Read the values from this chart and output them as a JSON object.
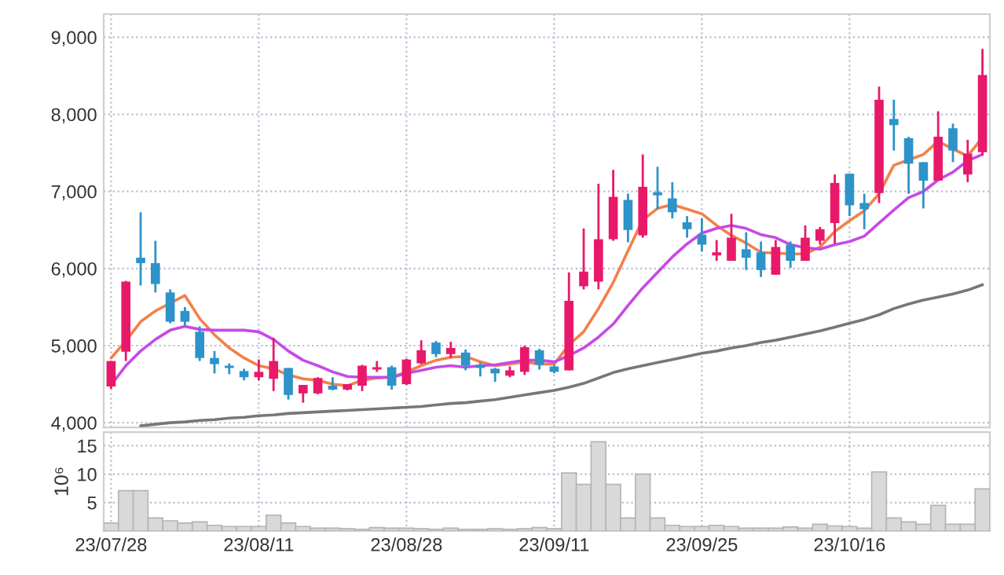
{
  "chart_data": [
    {
      "type": "candlestick",
      "categories": [
        null,
        null,
        null,
        null,
        null,
        null,
        null,
        null,
        null,
        null,
        null,
        null,
        null,
        null,
        null,
        null,
        null,
        null,
        null,
        null,
        null,
        null,
        null,
        null,
        null,
        null,
        null,
        null,
        null,
        null,
        null,
        null,
        null,
        null,
        null,
        null,
        null,
        null,
        null,
        null,
        null,
        null,
        null,
        null,
        null,
        null,
        null,
        null,
        null,
        null,
        null,
        null,
        null,
        null,
        null,
        null,
        null,
        null,
        null,
        null
      ],
      "ohlc": [
        [
          4470,
          4800,
          4440,
          4800
        ],
        [
          4920,
          5840,
          4800,
          5830
        ],
        [
          6140,
          6730,
          5780,
          6070
        ],
        [
          6070,
          6360,
          5690,
          5800
        ],
        [
          5690,
          5730,
          5290,
          5310
        ],
        [
          5450,
          5500,
          5260,
          5310
        ],
        [
          5180,
          5250,
          4800,
          4840
        ],
        [
          4840,
          4930,
          4640,
          4760
        ],
        [
          4740,
          4770,
          4630,
          4710
        ],
        [
          4670,
          4700,
          4550,
          4590
        ],
        [
          4590,
          4820,
          4550,
          4660
        ],
        [
          4570,
          5100,
          4410,
          4800
        ],
        [
          4710,
          4710,
          4300,
          4360
        ],
        [
          4380,
          4490,
          4260,
          4490
        ],
        [
          4380,
          4590,
          4370,
          4580
        ],
        [
          4480,
          4590,
          4420,
          4430
        ],
        [
          4430,
          4500,
          4420,
          4500
        ],
        [
          4480,
          4750,
          4410,
          4740
        ],
        [
          4690,
          4800,
          4660,
          4720
        ],
        [
          4720,
          4740,
          4430,
          4480
        ],
        [
          4500,
          4830,
          4490,
          4820
        ],
        [
          4770,
          5070,
          4760,
          4940
        ],
        [
          5040,
          5060,
          4850,
          4890
        ],
        [
          4890,
          5050,
          4840,
          4970
        ],
        [
          4910,
          4950,
          4680,
          4740
        ],
        [
          4750,
          4780,
          4600,
          4710
        ],
        [
          4700,
          4710,
          4530,
          4640
        ],
        [
          4610,
          4730,
          4590,
          4680
        ],
        [
          4660,
          5000,
          4620,
          4980
        ],
        [
          4940,
          4960,
          4690,
          4750
        ],
        [
          4730,
          4750,
          4640,
          4660
        ],
        [
          4680,
          5950,
          4680,
          5580
        ],
        [
          5770,
          6520,
          5730,
          5960
        ],
        [
          5830,
          7100,
          5730,
          6380
        ],
        [
          6380,
          7280,
          6360,
          6930
        ],
        [
          6890,
          6970,
          6340,
          6500
        ],
        [
          6430,
          7480,
          6400,
          7060
        ],
        [
          6990,
          7320,
          6770,
          6950
        ],
        [
          6910,
          7120,
          6650,
          6730
        ],
        [
          6600,
          6680,
          6400,
          6510
        ],
        [
          6440,
          6650,
          6220,
          6310
        ],
        [
          6170,
          6370,
          6100,
          6210
        ],
        [
          6100,
          6710,
          6100,
          6400
        ],
        [
          6250,
          6470,
          5980,
          6140
        ],
        [
          6210,
          6350,
          5890,
          5980
        ],
        [
          5920,
          6370,
          5920,
          6280
        ],
        [
          6310,
          6350,
          6010,
          6100
        ],
        [
          6100,
          6560,
          6100,
          6400
        ],
        [
          6360,
          6540,
          6310,
          6510
        ],
        [
          6590,
          7220,
          6320,
          7110
        ],
        [
          7230,
          7230,
          6680,
          6820
        ],
        [
          6850,
          6970,
          6510,
          6770
        ],
        [
          6980,
          8360,
          6850,
          8190
        ],
        [
          7940,
          8190,
          7530,
          7860
        ],
        [
          7690,
          7710,
          6970,
          7360
        ],
        [
          7380,
          7380,
          6780,
          7140
        ],
        [
          7140,
          8040,
          7140,
          7710
        ],
        [
          7820,
          7880,
          7380,
          7530
        ],
        [
          7220,
          7670,
          7120,
          7490
        ],
        [
          7510,
          8850,
          7470,
          8510
        ]
      ],
      "colors": [
        "#e8196a",
        "#e8196a",
        "#2d93c8",
        "#2d93c8",
        "#2d93c8",
        "#2d93c8",
        "#2d93c8",
        "#2d93c8",
        "#2d93c8",
        "#2d93c8",
        "#e8196a",
        "#e8196a",
        "#2d93c8",
        "#e8196a",
        "#e8196a",
        "#2d93c8",
        "#e8196a",
        "#e8196a",
        "#e8196a",
        "#2d93c8",
        "#e8196a",
        "#e8196a",
        "#2d93c8",
        "#e8196a",
        "#2d93c8",
        "#2d93c8",
        "#2d93c8",
        "#e8196a",
        "#e8196a",
        "#2d93c8",
        "#2d93c8",
        "#e8196a",
        "#e8196a",
        "#e8196a",
        "#e8196a",
        "#2d93c8",
        "#e8196a",
        "#2d93c8",
        "#2d93c8",
        "#2d93c8",
        "#2d93c8",
        "#e8196a",
        "#e8196a",
        "#2d93c8",
        "#2d93c8",
        "#e8196a",
        "#2d93c8",
        "#e8196a",
        "#e8196a",
        "#e8196a",
        "#2d93c8",
        "#2d93c8",
        "#e8196a",
        "#2d93c8",
        "#2d93c8",
        "#2d93c8",
        "#e8196a",
        "#2d93c8",
        "#e8196a",
        "#e8196a"
      ],
      "series": [
        {
          "type": "line",
          "color": "#f4804a",
          "values": [
            4840,
            5060,
            5310,
            5450,
            5550,
            5650,
            5350,
            5140,
            4970,
            4840,
            4740,
            4700,
            4620,
            4570,
            4550,
            4500,
            4480,
            4550,
            4580,
            4590,
            4660,
            4740,
            4810,
            4850,
            4860,
            4790,
            4740,
            4760,
            4790,
            4760,
            4760,
            5010,
            5180,
            5480,
            5820,
            6230,
            6630,
            6780,
            6830,
            6770,
            6710,
            6560,
            6430,
            6330,
            6210,
            6200,
            6190,
            6190,
            6280,
            6480,
            6620,
            6750,
            6970,
            7340,
            7410,
            7480,
            7650,
            7550,
            7460,
            7700
          ]
        },
        {
          "type": "line",
          "color": "#c64ae6",
          "values": [
            4490,
            4740,
            4930,
            5080,
            5200,
            5250,
            5210,
            5200,
            5200,
            5200,
            5180,
            5080,
            4930,
            4810,
            4740,
            4660,
            4600,
            4590,
            4590,
            4590,
            4640,
            4680,
            4720,
            4740,
            4720,
            4740,
            4750,
            4780,
            4810,
            4810,
            4790,
            4870,
            4970,
            5110,
            5280,
            5520,
            5750,
            5950,
            6150,
            6320,
            6460,
            6520,
            6560,
            6520,
            6440,
            6400,
            6310,
            6270,
            6250,
            6310,
            6350,
            6420,
            6590,
            6760,
            6920,
            7000,
            7150,
            7250,
            7400,
            7480
          ]
        },
        {
          "type": "line",
          "color": "#777777",
          "values": [
            null,
            null,
            3960,
            3980,
            4000,
            4010,
            4030,
            4040,
            4060,
            4070,
            4090,
            4100,
            4120,
            4130,
            4140,
            4150,
            4160,
            4170,
            4180,
            4190,
            4200,
            4210,
            4230,
            4250,
            4260,
            4280,
            4300,
            4330,
            4360,
            4390,
            4420,
            4460,
            4510,
            4580,
            4650,
            4700,
            4740,
            4780,
            4820,
            4860,
            4900,
            4930,
            4970,
            5000,
            5040,
            5070,
            5110,
            5150,
            5190,
            5240,
            5290,
            5340,
            5400,
            5480,
            5540,
            5590,
            5630,
            5670,
            5720,
            5790
          ]
        }
      ],
      "ylim": [
        3940,
        9300
      ],
      "yticks": [
        {
          "value": 4000,
          "label": "4,000"
        },
        {
          "value": 5000,
          "label": "5,000"
        },
        {
          "value": 6000,
          "label": "6,000"
        },
        {
          "value": 7000,
          "label": "7,000"
        },
        {
          "value": 8000,
          "label": "8,000"
        },
        {
          "value": 9000,
          "label": "9,000"
        }
      ],
      "grid": true,
      "tick_labels": "y"
    },
    {
      "type": "bar",
      "categories": [
        "23/07/28",
        null,
        null,
        null,
        null,
        null,
        null,
        null,
        null,
        null,
        "23/08/11",
        null,
        null,
        null,
        null,
        null,
        null,
        null,
        null,
        null,
        "23/08/28",
        null,
        null,
        null,
        null,
        null,
        null,
        null,
        null,
        null,
        "23/09/11",
        null,
        null,
        null,
        null,
        null,
        null,
        null,
        null,
        null,
        "23/09/25",
        null,
        null,
        null,
        null,
        null,
        null,
        null,
        null,
        null,
        "23/10/16",
        null,
        null,
        null,
        null,
        null,
        null,
        null,
        null,
        null
      ],
      "values": [
        1.4,
        7.1,
        7.1,
        2.3,
        1.8,
        1.4,
        1.6,
        1.0,
        0.8,
        0.8,
        0.8,
        2.8,
        1.4,
        0.8,
        0.5,
        0.5,
        0.4,
        0.3,
        0.6,
        0.5,
        0.5,
        0.4,
        0.3,
        0.5,
        0.3,
        0.3,
        0.4,
        0.3,
        0.4,
        0.6,
        0.4,
        10.2,
        8.2,
        15.7,
        8.2,
        2.3,
        10,
        2.3,
        1.0,
        0.8,
        0.8,
        1.0,
        0.8,
        0.5,
        0.5,
        0.5,
        0.7,
        0.5,
        1.2,
        0.9,
        0.8,
        0.5,
        10.4,
        2.3,
        1.6,
        1.2,
        4.5,
        1.2,
        1.2,
        7.4
      ],
      "color": "#d9d9d9",
      "ylim": [
        0,
        17.4
      ],
      "yticks": [
        5,
        10,
        15
      ],
      "ylabel": "10⁶",
      "grid": true
    }
  ]
}
